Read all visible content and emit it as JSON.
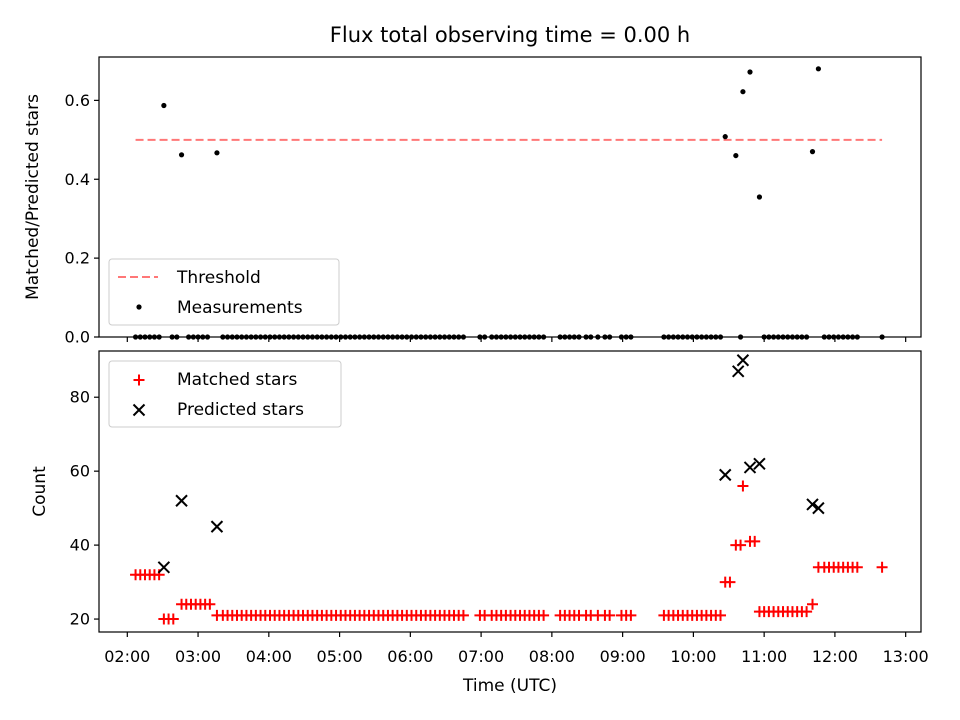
{
  "chart_data": {
    "title": "Flux total observing time = 0.00 h",
    "xlabel": "Time (UTC)",
    "x_ticks": [
      "02:00",
      "03:00",
      "04:00",
      "05:00",
      "06:00",
      "07:00",
      "08:00",
      "09:00",
      "10:00",
      "11:00",
      "12:00",
      "13:00"
    ],
    "xlim": [
      "01:36",
      "13:13"
    ],
    "panels": [
      {
        "type": "scatter",
        "ylabel": "Matched/Predicted stars",
        "ylim": [
          0,
          0.71
        ],
        "y_ticks": [
          "0.0",
          "0.2",
          "0.4",
          "0.6"
        ],
        "grid": false,
        "legend_position": "lower-left",
        "threshold": {
          "name": "Threshold",
          "value": 0.5,
          "color": "#ff7777",
          "x_start": "02:07",
          "x_end": "12:40"
        },
        "series": [
          {
            "name": "Measurements",
            "color": "#000000",
            "marker": "dot",
            "points": [
              {
                "x": "02:31",
                "y": 0.587
              },
              {
                "x": "02:46",
                "y": 0.462
              },
              {
                "x": "03:16",
                "y": 0.467
              },
              {
                "x": "10:27",
                "y": 0.508
              },
              {
                "x": "10:36",
                "y": 0.46
              },
              {
                "x": "10:42",
                "y": 0.622
              },
              {
                "x": "10:48",
                "y": 0.672
              },
              {
                "x": "10:56",
                "y": 0.355
              },
              {
                "x": "11:41",
                "y": 0.47
              },
              {
                "x": "11:46",
                "y": 0.68
              }
            ],
            "zero_times": [
              "02:07",
              "02:11",
              "02:15",
              "02:19",
              "02:23",
              "02:27",
              "02:38",
              "02:42",
              "02:52",
              "02:56",
              "03:00",
              "03:04",
              "03:08",
              "03:21",
              "03:25",
              "03:29",
              "03:33",
              "03:37",
              "03:41",
              "03:45",
              "03:49",
              "03:53",
              "03:57",
              "04:01",
              "04:05",
              "04:09",
              "04:13",
              "04:17",
              "04:21",
              "04:25",
              "04:29",
              "04:33",
              "04:37",
              "04:41",
              "04:45",
              "04:49",
              "04:53",
              "04:57",
              "05:01",
              "05:05",
              "05:09",
              "05:13",
              "05:17",
              "05:21",
              "05:25",
              "05:29",
              "05:33",
              "05:37",
              "05:41",
              "05:45",
              "05:49",
              "05:53",
              "05:57",
              "06:01",
              "06:05",
              "06:09",
              "06:13",
              "06:17",
              "06:21",
              "06:25",
              "06:29",
              "06:33",
              "06:37",
              "06:41",
              "06:45",
              "06:59",
              "07:03",
              "07:09",
              "07:13",
              "07:17",
              "07:21",
              "07:25",
              "07:29",
              "07:33",
              "07:37",
              "07:41",
              "07:45",
              "07:49",
              "07:53",
              "08:07",
              "08:11",
              "08:15",
              "08:19",
              "08:23",
              "08:29",
              "08:33",
              "08:39",
              "08:45",
              "08:49",
              "08:59",
              "09:03",
              "09:07",
              "09:35",
              "09:39",
              "09:43",
              "09:47",
              "09:51",
              "09:55",
              "09:59",
              "10:03",
              "10:07",
              "10:11",
              "10:15",
              "10:19",
              "10:23",
              "10:40",
              "11:00",
              "11:04",
              "11:08",
              "11:12",
              "11:16",
              "11:20",
              "11:24",
              "11:28",
              "11:32",
              "11:36",
              "11:51",
              "11:55",
              "11:59",
              "12:03",
              "12:07",
              "12:11",
              "12:15",
              "12:19",
              "12:40"
            ]
          }
        ]
      },
      {
        "type": "scatter",
        "ylabel": "Count",
        "ylim": [
          16.5,
          92.5
        ],
        "y_ticks": [
          "20",
          "40",
          "60",
          "80"
        ],
        "grid": false,
        "legend_position": "upper-left",
        "series": [
          {
            "name": "Matched stars",
            "color": "#ff0000",
            "marker": "plus",
            "points": [
              {
                "x": "02:07",
                "y": 32
              },
              {
                "x": "02:11",
                "y": 32
              },
              {
                "x": "02:15",
                "y": 32
              },
              {
                "x": "02:19",
                "y": 32
              },
              {
                "x": "02:23",
                "y": 32
              },
              {
                "x": "02:27",
                "y": 32
              },
              {
                "x": "02:31",
                "y": 20
              },
              {
                "x": "02:35",
                "y": 20
              },
              {
                "x": "02:39",
                "y": 20
              },
              {
                "x": "02:46",
                "y": 24
              },
              {
                "x": "02:50",
                "y": 24
              },
              {
                "x": "02:54",
                "y": 24
              },
              {
                "x": "02:58",
                "y": 24
              },
              {
                "x": "03:02",
                "y": 24
              },
              {
                "x": "03:06",
                "y": 24
              },
              {
                "x": "03:10",
                "y": 24
              },
              {
                "x": "03:16",
                "y": 21
              },
              {
                "x": "03:21",
                "y": 21
              },
              {
                "x": "03:25",
                "y": 21
              },
              {
                "x": "03:29",
                "y": 21
              },
              {
                "x": "03:33",
                "y": 21
              },
              {
                "x": "03:37",
                "y": 21
              },
              {
                "x": "03:41",
                "y": 21
              },
              {
                "x": "03:45",
                "y": 21
              },
              {
                "x": "03:49",
                "y": 21
              },
              {
                "x": "03:53",
                "y": 21
              },
              {
                "x": "03:57",
                "y": 21
              },
              {
                "x": "04:01",
                "y": 21
              },
              {
                "x": "04:05",
                "y": 21
              },
              {
                "x": "04:09",
                "y": 21
              },
              {
                "x": "04:13",
                "y": 21
              },
              {
                "x": "04:17",
                "y": 21
              },
              {
                "x": "04:21",
                "y": 21
              },
              {
                "x": "04:25",
                "y": 21
              },
              {
                "x": "04:29",
                "y": 21
              },
              {
                "x": "04:33",
                "y": 21
              },
              {
                "x": "04:37",
                "y": 21
              },
              {
                "x": "04:41",
                "y": 21
              },
              {
                "x": "04:45",
                "y": 21
              },
              {
                "x": "04:49",
                "y": 21
              },
              {
                "x": "04:53",
                "y": 21
              },
              {
                "x": "04:57",
                "y": 21
              },
              {
                "x": "05:01",
                "y": 21
              },
              {
                "x": "05:05",
                "y": 21
              },
              {
                "x": "05:09",
                "y": 21
              },
              {
                "x": "05:13",
                "y": 21
              },
              {
                "x": "05:17",
                "y": 21
              },
              {
                "x": "05:21",
                "y": 21
              },
              {
                "x": "05:25",
                "y": 21
              },
              {
                "x": "05:29",
                "y": 21
              },
              {
                "x": "05:33",
                "y": 21
              },
              {
                "x": "05:37",
                "y": 21
              },
              {
                "x": "05:41",
                "y": 21
              },
              {
                "x": "05:45",
                "y": 21
              },
              {
                "x": "05:49",
                "y": 21
              },
              {
                "x": "05:53",
                "y": 21
              },
              {
                "x": "05:57",
                "y": 21
              },
              {
                "x": "06:01",
                "y": 21
              },
              {
                "x": "06:05",
                "y": 21
              },
              {
                "x": "06:09",
                "y": 21
              },
              {
                "x": "06:13",
                "y": 21
              },
              {
                "x": "06:17",
                "y": 21
              },
              {
                "x": "06:21",
                "y": 21
              },
              {
                "x": "06:25",
                "y": 21
              },
              {
                "x": "06:29",
                "y": 21
              },
              {
                "x": "06:33",
                "y": 21
              },
              {
                "x": "06:37",
                "y": 21
              },
              {
                "x": "06:41",
                "y": 21
              },
              {
                "x": "06:45",
                "y": 21
              },
              {
                "x": "06:59",
                "y": 21
              },
              {
                "x": "07:03",
                "y": 21
              },
              {
                "x": "07:09",
                "y": 21
              },
              {
                "x": "07:13",
                "y": 21
              },
              {
                "x": "07:17",
                "y": 21
              },
              {
                "x": "07:21",
                "y": 21
              },
              {
                "x": "07:25",
                "y": 21
              },
              {
                "x": "07:29",
                "y": 21
              },
              {
                "x": "07:33",
                "y": 21
              },
              {
                "x": "07:37",
                "y": 21
              },
              {
                "x": "07:41",
                "y": 21
              },
              {
                "x": "07:45",
                "y": 21
              },
              {
                "x": "07:49",
                "y": 21
              },
              {
                "x": "07:53",
                "y": 21
              },
              {
                "x": "08:07",
                "y": 21
              },
              {
                "x": "08:11",
                "y": 21
              },
              {
                "x": "08:15",
                "y": 21
              },
              {
                "x": "08:19",
                "y": 21
              },
              {
                "x": "08:23",
                "y": 21
              },
              {
                "x": "08:29",
                "y": 21
              },
              {
                "x": "08:33",
                "y": 21
              },
              {
                "x": "08:39",
                "y": 21
              },
              {
                "x": "08:45",
                "y": 21
              },
              {
                "x": "08:49",
                "y": 21
              },
              {
                "x": "08:59",
                "y": 21
              },
              {
                "x": "09:03",
                "y": 21
              },
              {
                "x": "09:07",
                "y": 21
              },
              {
                "x": "09:35",
                "y": 21
              },
              {
                "x": "09:39",
                "y": 21
              },
              {
                "x": "09:43",
                "y": 21
              },
              {
                "x": "09:47",
                "y": 21
              },
              {
                "x": "09:51",
                "y": 21
              },
              {
                "x": "09:55",
                "y": 21
              },
              {
                "x": "09:59",
                "y": 21
              },
              {
                "x": "10:03",
                "y": 21
              },
              {
                "x": "10:07",
                "y": 21
              },
              {
                "x": "10:11",
                "y": 21
              },
              {
                "x": "10:15",
                "y": 21
              },
              {
                "x": "10:19",
                "y": 21
              },
              {
                "x": "10:23",
                "y": 21
              },
              {
                "x": "10:27",
                "y": 30
              },
              {
                "x": "10:31",
                "y": 30
              },
              {
                "x": "10:36",
                "y": 40
              },
              {
                "x": "10:40",
                "y": 40
              },
              {
                "x": "10:42",
                "y": 56
              },
              {
                "x": "10:48",
                "y": 41
              },
              {
                "x": "10:52",
                "y": 41
              },
              {
                "x": "10:56",
                "y": 22
              },
              {
                "x": "11:00",
                "y": 22
              },
              {
                "x": "11:04",
                "y": 22
              },
              {
                "x": "11:08",
                "y": 22
              },
              {
                "x": "11:12",
                "y": 22
              },
              {
                "x": "11:16",
                "y": 22
              },
              {
                "x": "11:20",
                "y": 22
              },
              {
                "x": "11:24",
                "y": 22
              },
              {
                "x": "11:28",
                "y": 22
              },
              {
                "x": "11:32",
                "y": 22
              },
              {
                "x": "11:36",
                "y": 22
              },
              {
                "x": "11:41",
                "y": 24
              },
              {
                "x": "11:46",
                "y": 34
              },
              {
                "x": "11:51",
                "y": 34
              },
              {
                "x": "11:55",
                "y": 34
              },
              {
                "x": "11:59",
                "y": 34
              },
              {
                "x": "12:03",
                "y": 34
              },
              {
                "x": "12:07",
                "y": 34
              },
              {
                "x": "12:11",
                "y": 34
              },
              {
                "x": "12:15",
                "y": 34
              },
              {
                "x": "12:19",
                "y": 34
              },
              {
                "x": "12:40",
                "y": 34
              }
            ]
          },
          {
            "name": "Predicted stars",
            "color": "#000000",
            "marker": "x",
            "points": [
              {
                "x": "02:31",
                "y": 34
              },
              {
                "x": "02:46",
                "y": 52
              },
              {
                "x": "03:16",
                "y": 45
              },
              {
                "x": "10:27",
                "y": 59
              },
              {
                "x": "10:38",
                "y": 87
              },
              {
                "x": "10:42",
                "y": 90
              },
              {
                "x": "10:48",
                "y": 61
              },
              {
                "x": "10:56",
                "y": 62
              },
              {
                "x": "11:41",
                "y": 51
              },
              {
                "x": "11:46",
                "y": 50
              }
            ]
          }
        ]
      }
    ]
  }
}
